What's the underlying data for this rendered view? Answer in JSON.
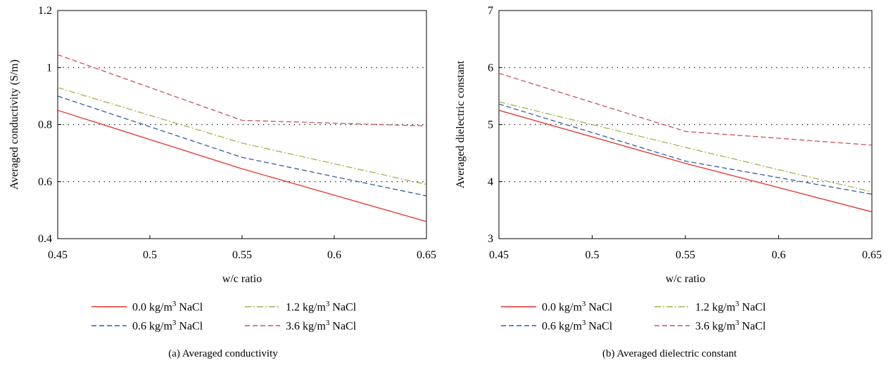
{
  "figure": {
    "legend_entries": [
      {
        "label": "0.0 kg/m",
        "sup": "3",
        "suffix": " NaCl",
        "color": "#e8302a",
        "dash": "solid"
      },
      {
        "label": "0.6 kg/m",
        "sup": "3",
        "suffix": " NaCl",
        "color": "#2e5fa1",
        "dash": "dash"
      },
      {
        "label": "1.2 kg/m",
        "sup": "3",
        "suffix": " NaCl",
        "color": "#a7b04a",
        "dash": "dashdot"
      },
      {
        "label": "3.6 kg/m",
        "sup": "3",
        "suffix": " NaCl",
        "color": "#c8505a",
        "dash": "dash"
      }
    ]
  },
  "chart_data": [
    {
      "id": "a",
      "type": "line",
      "caption": "(a)  Averaged conductivity",
      "xlabel": "w/c ratio",
      "ylabel": "Averaged conductivity (S/m)",
      "xlim": [
        0.45,
        0.65
      ],
      "ylim": [
        0.4,
        1.2
      ],
      "xticks": [
        0.45,
        0.5,
        0.55,
        0.6,
        0.65
      ],
      "xtick_labels": [
        "0.45",
        "0.5",
        "0.55",
        "0.6",
        "0.65"
      ],
      "yticks": [
        0.4,
        0.6,
        0.8,
        1.0,
        1.2
      ],
      "ytick_labels": [
        "0.4",
        "0.6",
        "0.8",
        "1",
        "1.2"
      ],
      "grid": "horizontal-dotted",
      "x": [
        0.45,
        0.55,
        0.65
      ],
      "series": [
        {
          "name": "0.0 kg/m3 NaCl",
          "values": [
            0.85,
            0.645,
            0.46
          ]
        },
        {
          "name": "0.6 kg/m3 NaCl",
          "values": [
            0.9,
            0.685,
            0.55
          ]
        },
        {
          "name": "1.2 kg/m3 NaCl",
          "values": [
            0.93,
            0.735,
            0.59
          ]
        },
        {
          "name": "3.6 kg/m3 NaCl",
          "values": [
            1.045,
            0.815,
            0.795
          ]
        }
      ]
    },
    {
      "id": "b",
      "type": "line",
      "caption": "(b)  Averaged dielectric constant",
      "xlabel": "w/c ratio",
      "ylabel": "Averaged dielectric constant",
      "xlim": [
        0.45,
        0.65
      ],
      "ylim": [
        3,
        7
      ],
      "xticks": [
        0.45,
        0.5,
        0.55,
        0.6,
        0.65
      ],
      "xtick_labels": [
        "0.45",
        "0.5",
        "0.55",
        "0.6",
        "0.65"
      ],
      "yticks": [
        3,
        4,
        5,
        6,
        7
      ],
      "ytick_labels": [
        "3",
        "4",
        "5",
        "6",
        "7"
      ],
      "grid": "horizontal-dotted",
      "x": [
        0.45,
        0.55,
        0.65
      ],
      "series": [
        {
          "name": "0.0 kg/m3 NaCl",
          "values": [
            5.25,
            4.32,
            3.47
          ]
        },
        {
          "name": "0.6 kg/m3 NaCl",
          "values": [
            5.36,
            4.36,
            3.78
          ]
        },
        {
          "name": "1.2 kg/m3 NaCl",
          "values": [
            5.4,
            4.6,
            3.82
          ]
        },
        {
          "name": "3.6 kg/m3 NaCl",
          "values": [
            5.9,
            4.88,
            4.64
          ]
        }
      ]
    }
  ]
}
